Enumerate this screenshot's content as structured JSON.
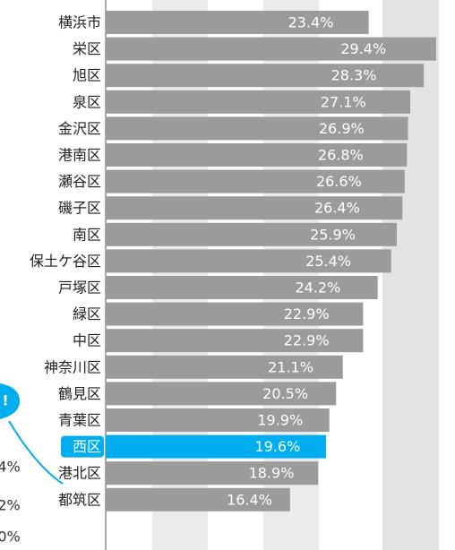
{
  "chart_data": {
    "type": "barh",
    "categories": [
      "横浜市",
      "栄区",
      "旭区",
      "泉区",
      "金沢区",
      "港南区",
      "瀬谷区",
      "磯子区",
      "南区",
      "保土ケ谷区",
      "戸塚区",
      "緑区",
      "中区",
      "神奈川区",
      "鶴見区",
      "青葉区",
      "西区",
      "港北区",
      "都筑区"
    ],
    "values": [
      23.4,
      29.4,
      28.3,
      27.1,
      26.9,
      26.8,
      26.6,
      26.4,
      25.9,
      25.4,
      24.2,
      22.9,
      22.9,
      21.1,
      20.5,
      19.9,
      19.6,
      18.9,
      16.4
    ],
    "value_labels": [
      "23.4%",
      "29.4%",
      "28.3%",
      "27.1%",
      "26.9%",
      "26.8%",
      "26.6%",
      "26.4%",
      "25.9%",
      "25.4%",
      "24.2%",
      "22.9%",
      "22.9%",
      "21.1%",
      "20.5%",
      "19.9%",
      "19.6%",
      "18.9%",
      "16.4%"
    ],
    "colors": [
      "#9b9b9b",
      "#9b9b9b",
      "#9b9b9b",
      "#9b9b9b",
      "#9b9b9b",
      "#9b9b9b",
      "#9b9b9b",
      "#9b9b9b",
      "#9b9b9b",
      "#9b9b9b",
      "#9b9b9b",
      "#9b9b9b",
      "#9b9b9b",
      "#9b9b9b",
      "#9b9b9b",
      "#9b9b9b",
      "#00aeef",
      "#9b9b9b",
      "#9b9b9b"
    ],
    "xlim": [
      0,
      31
    ],
    "fragments": [
      "!",
      "4%",
      "2%",
      "0%"
    ]
  }
}
